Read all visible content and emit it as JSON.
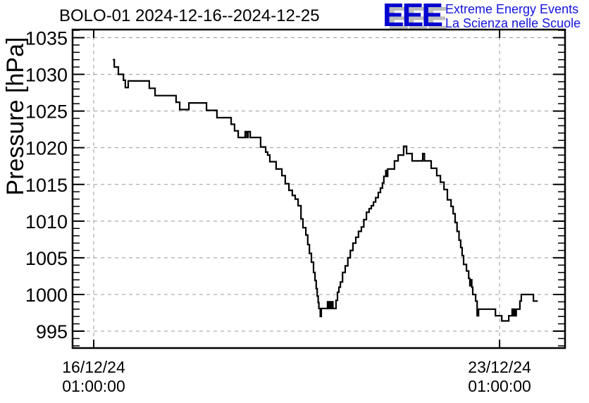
{
  "header": {
    "title": "BOLO-01 2024-12-16--2024-12-25",
    "logo": {
      "acronym": "EEE",
      "line1": "Extreme Energy Events",
      "line2": "La Scienza nelle Scuole",
      "accent_color": "#0202d0"
    }
  },
  "chart_data": {
    "type": "line",
    "step": "after",
    "title": "BOLO-01 2024-12-16--2024-12-25",
    "ylabel": "Pressure [hPa]",
    "xlabel": "",
    "x_unit": "hours since 2024-12-16 01:00:00",
    "ylim": [
      992.7,
      1036.1
    ],
    "xlim_hours": [
      -8.75,
      195.1
    ],
    "y_ticks": [
      995,
      1000,
      1005,
      1010,
      1015,
      1020,
      1025,
      1030,
      1035
    ],
    "y_minor_step": 1,
    "x_ticks": [
      {
        "hours": 0,
        "date": "16/12/24",
        "time": "01:00:00"
      },
      {
        "hours": 168,
        "date": "23/12/24",
        "time": "01:00:00"
      }
    ],
    "grid": true,
    "grid_color": "#999999",
    "line_color": "#000000",
    "frame_color": "#000000",
    "points": [
      [
        7.9,
        1032
      ],
      [
        8.5,
        1031
      ],
      [
        10.2,
        1030
      ],
      [
        12.3,
        1029.2
      ],
      [
        13.1,
        1028.2
      ],
      [
        14.3,
        1029.1
      ],
      [
        23,
        1028.1
      ],
      [
        25.4,
        1027.1
      ],
      [
        34.1,
        1026.2
      ],
      [
        35.6,
        1025.2
      ],
      [
        39.4,
        1026.1
      ],
      [
        46.7,
        1025.1
      ],
      [
        51,
        1024.1
      ],
      [
        56.9,
        1023.2
      ],
      [
        58.3,
        1022.3
      ],
      [
        59.8,
        1021.4
      ],
      [
        62.7,
        1022.2
      ],
      [
        63.4,
        1021.4
      ],
      [
        63.9,
        1022.2
      ],
      [
        64.8,
        1021.4
      ],
      [
        69.1,
        1020.1
      ],
      [
        71.2,
        1019.4
      ],
      [
        72,
        1019
      ],
      [
        72.9,
        1018.1
      ],
      [
        75.5,
        1017.1
      ],
      [
        77.9,
        1016.2
      ],
      [
        79.3,
        1015.1
      ],
      [
        80.8,
        1014.2
      ],
      [
        82.2,
        1013.5
      ],
      [
        83.4,
        1013
      ],
      [
        84.6,
        1012.1
      ],
      [
        85.8,
        1010.3
      ],
      [
        86.6,
        1009.1
      ],
      [
        87.8,
        1008.1
      ],
      [
        88.6,
        1006.8
      ],
      [
        89.3,
        1005.6
      ],
      [
        90.1,
        1004.4
      ],
      [
        91,
        1003
      ],
      [
        91.6,
        1001.9
      ],
      [
        92.1,
        1000.8
      ],
      [
        92.5,
        999.8
      ],
      [
        92.9,
        998.9
      ],
      [
        93.2,
        998.1
      ],
      [
        93.8,
        997
      ],
      [
        94.2,
        998.1
      ],
      [
        96.8,
        999
      ],
      [
        97.2,
        998.1
      ],
      [
        97.7,
        999
      ],
      [
        98.1,
        998.1
      ],
      [
        98.6,
        999
      ],
      [
        99,
        998.1
      ],
      [
        100.3,
        999.2
      ],
      [
        100.9,
        1000.3
      ],
      [
        101.5,
        1001
      ],
      [
        102.1,
        1001.7
      ],
      [
        103,
        1003
      ],
      [
        104.1,
        1003.9
      ],
      [
        105.2,
        1005
      ],
      [
        106.2,
        1006
      ],
      [
        107.3,
        1007
      ],
      [
        108.5,
        1007.8
      ],
      [
        109.6,
        1008.6
      ],
      [
        110.8,
        1009.2
      ],
      [
        111.8,
        1010.2
      ],
      [
        112.9,
        1011.2
      ],
      [
        114,
        1011.7
      ],
      [
        114.9,
        1012.1
      ],
      [
        115.8,
        1012.6
      ],
      [
        116.7,
        1013.2
      ],
      [
        117.8,
        1013.9
      ],
      [
        118.7,
        1014.5
      ],
      [
        119.5,
        1015.2
      ],
      [
        120.1,
        1016.1
      ],
      [
        120.9,
        1016.9
      ],
      [
        121.3,
        1016.1
      ],
      [
        121.7,
        1017.1
      ],
      [
        124.5,
        1018.2
      ],
      [
        126,
        1019
      ],
      [
        128.3,
        1020.2
      ],
      [
        129.5,
        1019.2
      ],
      [
        131.8,
        1018.2
      ],
      [
        136.2,
        1019.2
      ],
      [
        136.9,
        1018.2
      ],
      [
        139.7,
        1017.2
      ],
      [
        142,
        1016.2
      ],
      [
        143.5,
        1015.3
      ],
      [
        145,
        1014.3
      ],
      [
        146.4,
        1012.9
      ],
      [
        147.9,
        1012
      ],
      [
        148.8,
        1011
      ],
      [
        149.6,
        1009.8
      ],
      [
        150.4,
        1008.6
      ],
      [
        151.2,
        1007.4
      ],
      [
        151.9,
        1006.4
      ],
      [
        152.5,
        1005.3
      ],
      [
        153.1,
        1004.1
      ],
      [
        154.3,
        1003.2
      ],
      [
        155.2,
        1002.2
      ],
      [
        155.7,
        1001.2
      ],
      [
        156.1,
        1002
      ],
      [
        156.5,
        1001
      ],
      [
        156.9,
        1000
      ],
      [
        158.1,
        999.1
      ],
      [
        158.7,
        997.1
      ],
      [
        159.3,
        998
      ],
      [
        166.3,
        997.1
      ],
      [
        168.9,
        996.4
      ],
      [
        171.8,
        997.1
      ],
      [
        173.2,
        998
      ],
      [
        173.7,
        997.1
      ],
      [
        174.1,
        998
      ],
      [
        174.5,
        997.1
      ],
      [
        174.9,
        998
      ],
      [
        176.4,
        999.1
      ],
      [
        177,
        1000
      ],
      [
        182,
        999.1
      ],
      [
        183.8,
        999.1
      ]
    ]
  }
}
